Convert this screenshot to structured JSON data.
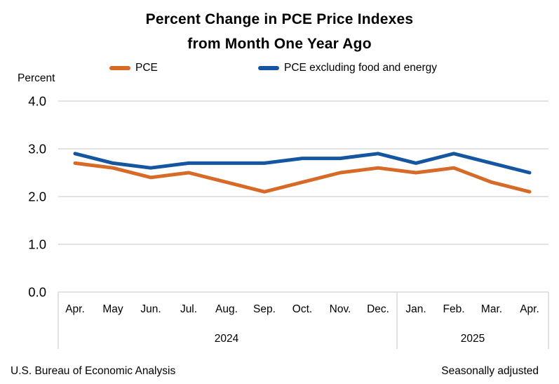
{
  "header": {
    "title_line1": "Percent Change in PCE Price Indexes",
    "title_line2": "from Month One Year Ago"
  },
  "axis": {
    "y_title": "Percent"
  },
  "footer": {
    "left": "U.S. Bureau of Economic Analysis",
    "right": "Seasonally adjusted"
  },
  "colors": {
    "pce_orange": "#D86A27",
    "core_blue": "#1556A0",
    "gridline_gray": "#D9D9D9"
  },
  "chart_data": {
    "type": "line",
    "title": "Percent Change in PCE Price Indexes from Month One Year Ago",
    "xlabel": "",
    "ylabel": "Percent",
    "categories": [
      "Apr.",
      "May",
      "Jun.",
      "Jul.",
      "Aug.",
      "Sep.",
      "Oct.",
      "Nov.",
      "Dec.",
      "Jan.",
      "Feb.",
      "Mar.",
      "Apr."
    ],
    "year_groups": [
      {
        "label": "2024",
        "start": 0,
        "end": 8
      },
      {
        "label": "2025",
        "start": 9,
        "end": 12
      }
    ],
    "series": [
      {
        "name": "PCE",
        "color": "#D86A27",
        "values": [
          2.7,
          2.6,
          2.4,
          2.5,
          2.3,
          2.1,
          2.3,
          2.5,
          2.6,
          2.5,
          2.6,
          2.3,
          2.1
        ]
      },
      {
        "name": "PCE excluding food and energy",
        "color": "#1556A0",
        "values": [
          2.9,
          2.7,
          2.6,
          2.7,
          2.7,
          2.7,
          2.8,
          2.8,
          2.9,
          2.7,
          2.9,
          2.7,
          2.5
        ]
      }
    ],
    "ylim": [
      0,
      4
    ],
    "yticks": [
      0,
      1,
      2,
      3,
      4
    ],
    "ytick_labels": [
      "0.0",
      "1.0",
      "2.0",
      "3.0",
      "4.0"
    ],
    "grid": true,
    "legend_position": "top",
    "note": "Seasonally adjusted"
  }
}
